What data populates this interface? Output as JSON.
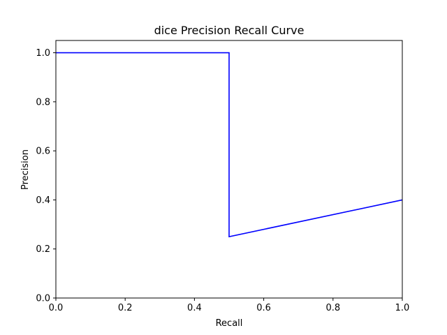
{
  "chart_data": {
    "type": "line",
    "title": "dice Precision Recall Curve",
    "xlabel": "Recall",
    "ylabel": "Precision",
    "xlim": [
      0.0,
      1.0
    ],
    "ylim": [
      0.0,
      1.05
    ],
    "xticks": [
      0.0,
      0.2,
      0.4,
      0.6,
      0.8,
      1.0
    ],
    "yticks": [
      0.0,
      0.2,
      0.4,
      0.6,
      0.8,
      1.0
    ],
    "xtick_labels": [
      "0.0",
      "0.2",
      "0.4",
      "0.6",
      "0.8",
      "1.0"
    ],
    "ytick_labels": [
      "0.0",
      "0.2",
      "0.4",
      "0.6",
      "0.8",
      "1.0"
    ],
    "grid": false,
    "legend": "none",
    "series": [
      {
        "color": "#0000ff",
        "x": [
          0.0,
          0.5,
          0.5,
          1.0
        ],
        "y": [
          1.0,
          1.0,
          0.25,
          0.4
        ]
      }
    ]
  }
}
